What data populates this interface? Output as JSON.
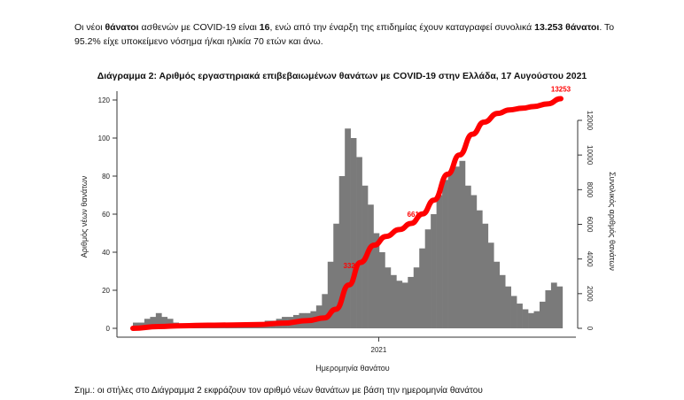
{
  "intro": {
    "t1": "Οι νέοι ",
    "b1": "θάνατοι",
    "t2": " ασθενών με COVID-19 είναι ",
    "b2": "16",
    "t3": ", ενώ από την έναρξη της επιδημίας έχουν καταγραφεί συνολικά ",
    "b3": "13.253 θάνατοι",
    "t4": ".  Το 95.2% είχε υποκείμενο νόσημα ή/και ηλικία 70 ετών και άνω."
  },
  "note": "Σημ.: οι στήλες στο Διάγραμμα 2 εκφράζουν τον αριθμό νέων θανάτων με βάση την ημερομηνία θανάτου",
  "chart_data": {
    "type": "bar+line",
    "title": "Διάγραμμα 2: Αριθμός εργαστηριακά επιβεβαιωμένων θανάτων με COVID-19 στην Ελλάδα, 17 Αυγούστου 2021",
    "xlabel": "Ημερομηνία θανάτου",
    "ylabel": "Αριθμός νέων θανάτων",
    "y2label": "Συνολικός αριθμός θανάτων",
    "xticks": [
      {
        "date": "2021-01-01",
        "label": "2021"
      }
    ],
    "ylim": [
      0,
      125
    ],
    "yticks": [
      0,
      20,
      40,
      60,
      80,
      100,
      120
    ],
    "y2lim": [
      0,
      13500
    ],
    "y2ticks": [
      0,
      2000,
      4000,
      6000,
      8000,
      10000,
      12000
    ],
    "xlim": [
      "2020-03-12",
      "2021-08-17"
    ],
    "bar_color": "#7a7a7a",
    "line_color": "#ff0000",
    "bars": {
      "x": [
        "2020-03-12",
        "2020-03-19",
        "2020-03-26",
        "2020-04-02",
        "2020-04-09",
        "2020-04-16",
        "2020-04-23",
        "2020-04-30",
        "2020-05-07",
        "2020-05-14",
        "2020-05-21",
        "2020-05-28",
        "2020-06-04",
        "2020-06-11",
        "2020-06-18",
        "2020-06-25",
        "2020-07-02",
        "2020-07-09",
        "2020-07-16",
        "2020-07-23",
        "2020-07-30",
        "2020-08-06",
        "2020-08-13",
        "2020-08-20",
        "2020-08-27",
        "2020-09-03",
        "2020-09-10",
        "2020-09-17",
        "2020-09-24",
        "2020-10-01",
        "2020-10-08",
        "2020-10-15",
        "2020-10-22",
        "2020-10-29",
        "2020-11-05",
        "2020-11-12",
        "2020-11-19",
        "2020-11-26",
        "2020-12-03",
        "2020-12-10",
        "2020-12-17",
        "2020-12-24",
        "2020-12-31",
        "2021-01-07",
        "2021-01-14",
        "2021-01-21",
        "2021-01-28",
        "2021-02-04",
        "2021-02-11",
        "2021-02-18",
        "2021-02-25",
        "2021-03-04",
        "2021-03-11",
        "2021-03-18",
        "2021-03-25",
        "2021-04-01",
        "2021-04-08",
        "2021-04-15",
        "2021-04-22",
        "2021-04-29",
        "2021-05-06",
        "2021-05-13",
        "2021-05-20",
        "2021-05-27",
        "2021-06-03",
        "2021-06-10",
        "2021-06-17",
        "2021-06-24",
        "2021-07-01",
        "2021-07-08",
        "2021-07-15",
        "2021-07-22",
        "2021-07-29",
        "2021-08-05",
        "2021-08-12"
      ],
      "values": [
        3,
        3,
        5,
        6,
        8,
        6,
        5,
        3,
        2,
        2,
        2,
        1,
        1,
        1,
        1,
        1,
        1,
        1,
        1,
        2,
        2,
        3,
        3,
        4,
        4,
        5,
        6,
        6,
        7,
        8,
        8,
        9,
        12,
        18,
        35,
        55,
        80,
        105,
        100,
        90,
        75,
        65,
        50,
        40,
        32,
        28,
        25,
        24,
        27,
        32,
        42,
        52,
        60,
        70,
        78,
        82,
        85,
        88,
        75,
        70,
        62,
        55,
        45,
        35,
        28,
        22,
        17,
        13,
        10,
        8,
        9,
        14,
        20,
        24,
        22
      ]
    },
    "cumulative": {
      "x": [
        "2020-03-12",
        "2020-04-12",
        "2020-05-12",
        "2020-06-12",
        "2020-07-12",
        "2020-08-12",
        "2020-09-12",
        "2020-10-12",
        "2020-11-01",
        "2020-11-15",
        "2020-12-01",
        "2020-12-15",
        "2021-01-01",
        "2021-01-15",
        "2021-02-01",
        "2021-02-15",
        "2021-03-01",
        "2021-03-15",
        "2021-04-01",
        "2021-04-15",
        "2021-05-01",
        "2021-05-15",
        "2021-06-01",
        "2021-06-15",
        "2021-07-01",
        "2021-07-15",
        "2021-08-01",
        "2021-08-17"
      ],
      "values": [
        0,
        100,
        150,
        180,
        190,
        215,
        300,
        450,
        600,
        1100,
        2500,
        3800,
        4800,
        5300,
        5700,
        6050,
        6600,
        7400,
        8900,
        10000,
        11200,
        11900,
        12400,
        12600,
        12700,
        12800,
        12950,
        13253
      ]
    },
    "annotations": [
      {
        "date": "2020-12-13",
        "label": "332"
      },
      {
        "date": "2021-03-01",
        "label": "661"
      },
      {
        "date": "2021-08-17",
        "label": "13253"
      }
    ],
    "grid": false,
    "legend": "none"
  }
}
